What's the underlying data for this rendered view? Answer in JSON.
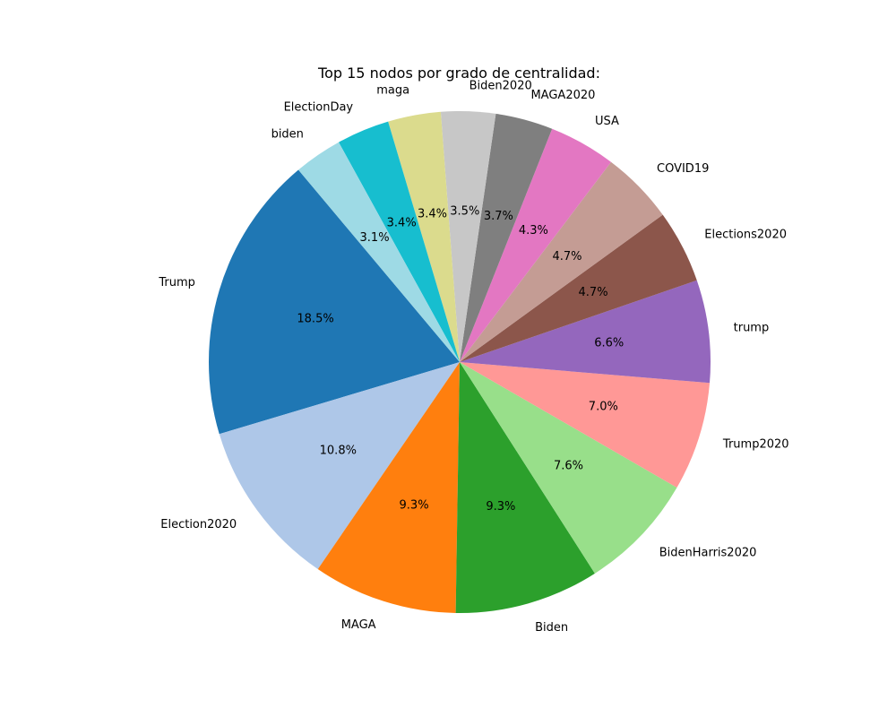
{
  "chart_data": {
    "type": "pie",
    "title": "Top 15 nodos por grado de centralidad:",
    "start_angle_deg": 130,
    "direction": "counterclockwise",
    "slices": [
      {
        "label": "Trump",
        "percent": 18.5,
        "pct_label": "18.5%",
        "color": "#1f77b4"
      },
      {
        "label": "Election2020",
        "percent": 10.8,
        "pct_label": "10.8%",
        "color": "#aec7e8"
      },
      {
        "label": "MAGA",
        "percent": 9.3,
        "pct_label": "9.3%",
        "color": "#ff7f0e"
      },
      {
        "label": "Biden",
        "percent": 9.3,
        "pct_label": "9.3%",
        "color": "#2ca02c"
      },
      {
        "label": "BidenHarris2020",
        "percent": 7.6,
        "pct_label": "7.6%",
        "color": "#98df8a"
      },
      {
        "label": "Trump2020",
        "percent": 7.0,
        "pct_label": "7.0%",
        "color": "#ff9896"
      },
      {
        "label": "trump",
        "percent": 6.6,
        "pct_label": "6.6%",
        "color": "#9467bd"
      },
      {
        "label": "Elections2020",
        "percent": 4.7,
        "pct_label": "4.7%",
        "color": "#8c564b"
      },
      {
        "label": "COVID19",
        "percent": 4.7,
        "pct_label": "4.7%",
        "color": "#c49c94"
      },
      {
        "label": "USA",
        "percent": 4.3,
        "pct_label": "4.3%",
        "color": "#e377c2"
      },
      {
        "label": "MAGA2020",
        "percent": 3.7,
        "pct_label": "3.7%",
        "color": "#7f7f7f"
      },
      {
        "label": "Biden2020",
        "percent": 3.5,
        "pct_label": "3.5%",
        "color": "#c7c7c7"
      },
      {
        "label": "maga",
        "percent": 3.4,
        "pct_label": "3.4%",
        "color": "#dbdb8d"
      },
      {
        "label": "ElectionDay",
        "percent": 3.4,
        "pct_label": "3.4%",
        "color": "#17becf"
      },
      {
        "label": "biden",
        "percent": 3.1,
        "pct_label": "3.1%",
        "color": "#9edae5"
      }
    ]
  }
}
